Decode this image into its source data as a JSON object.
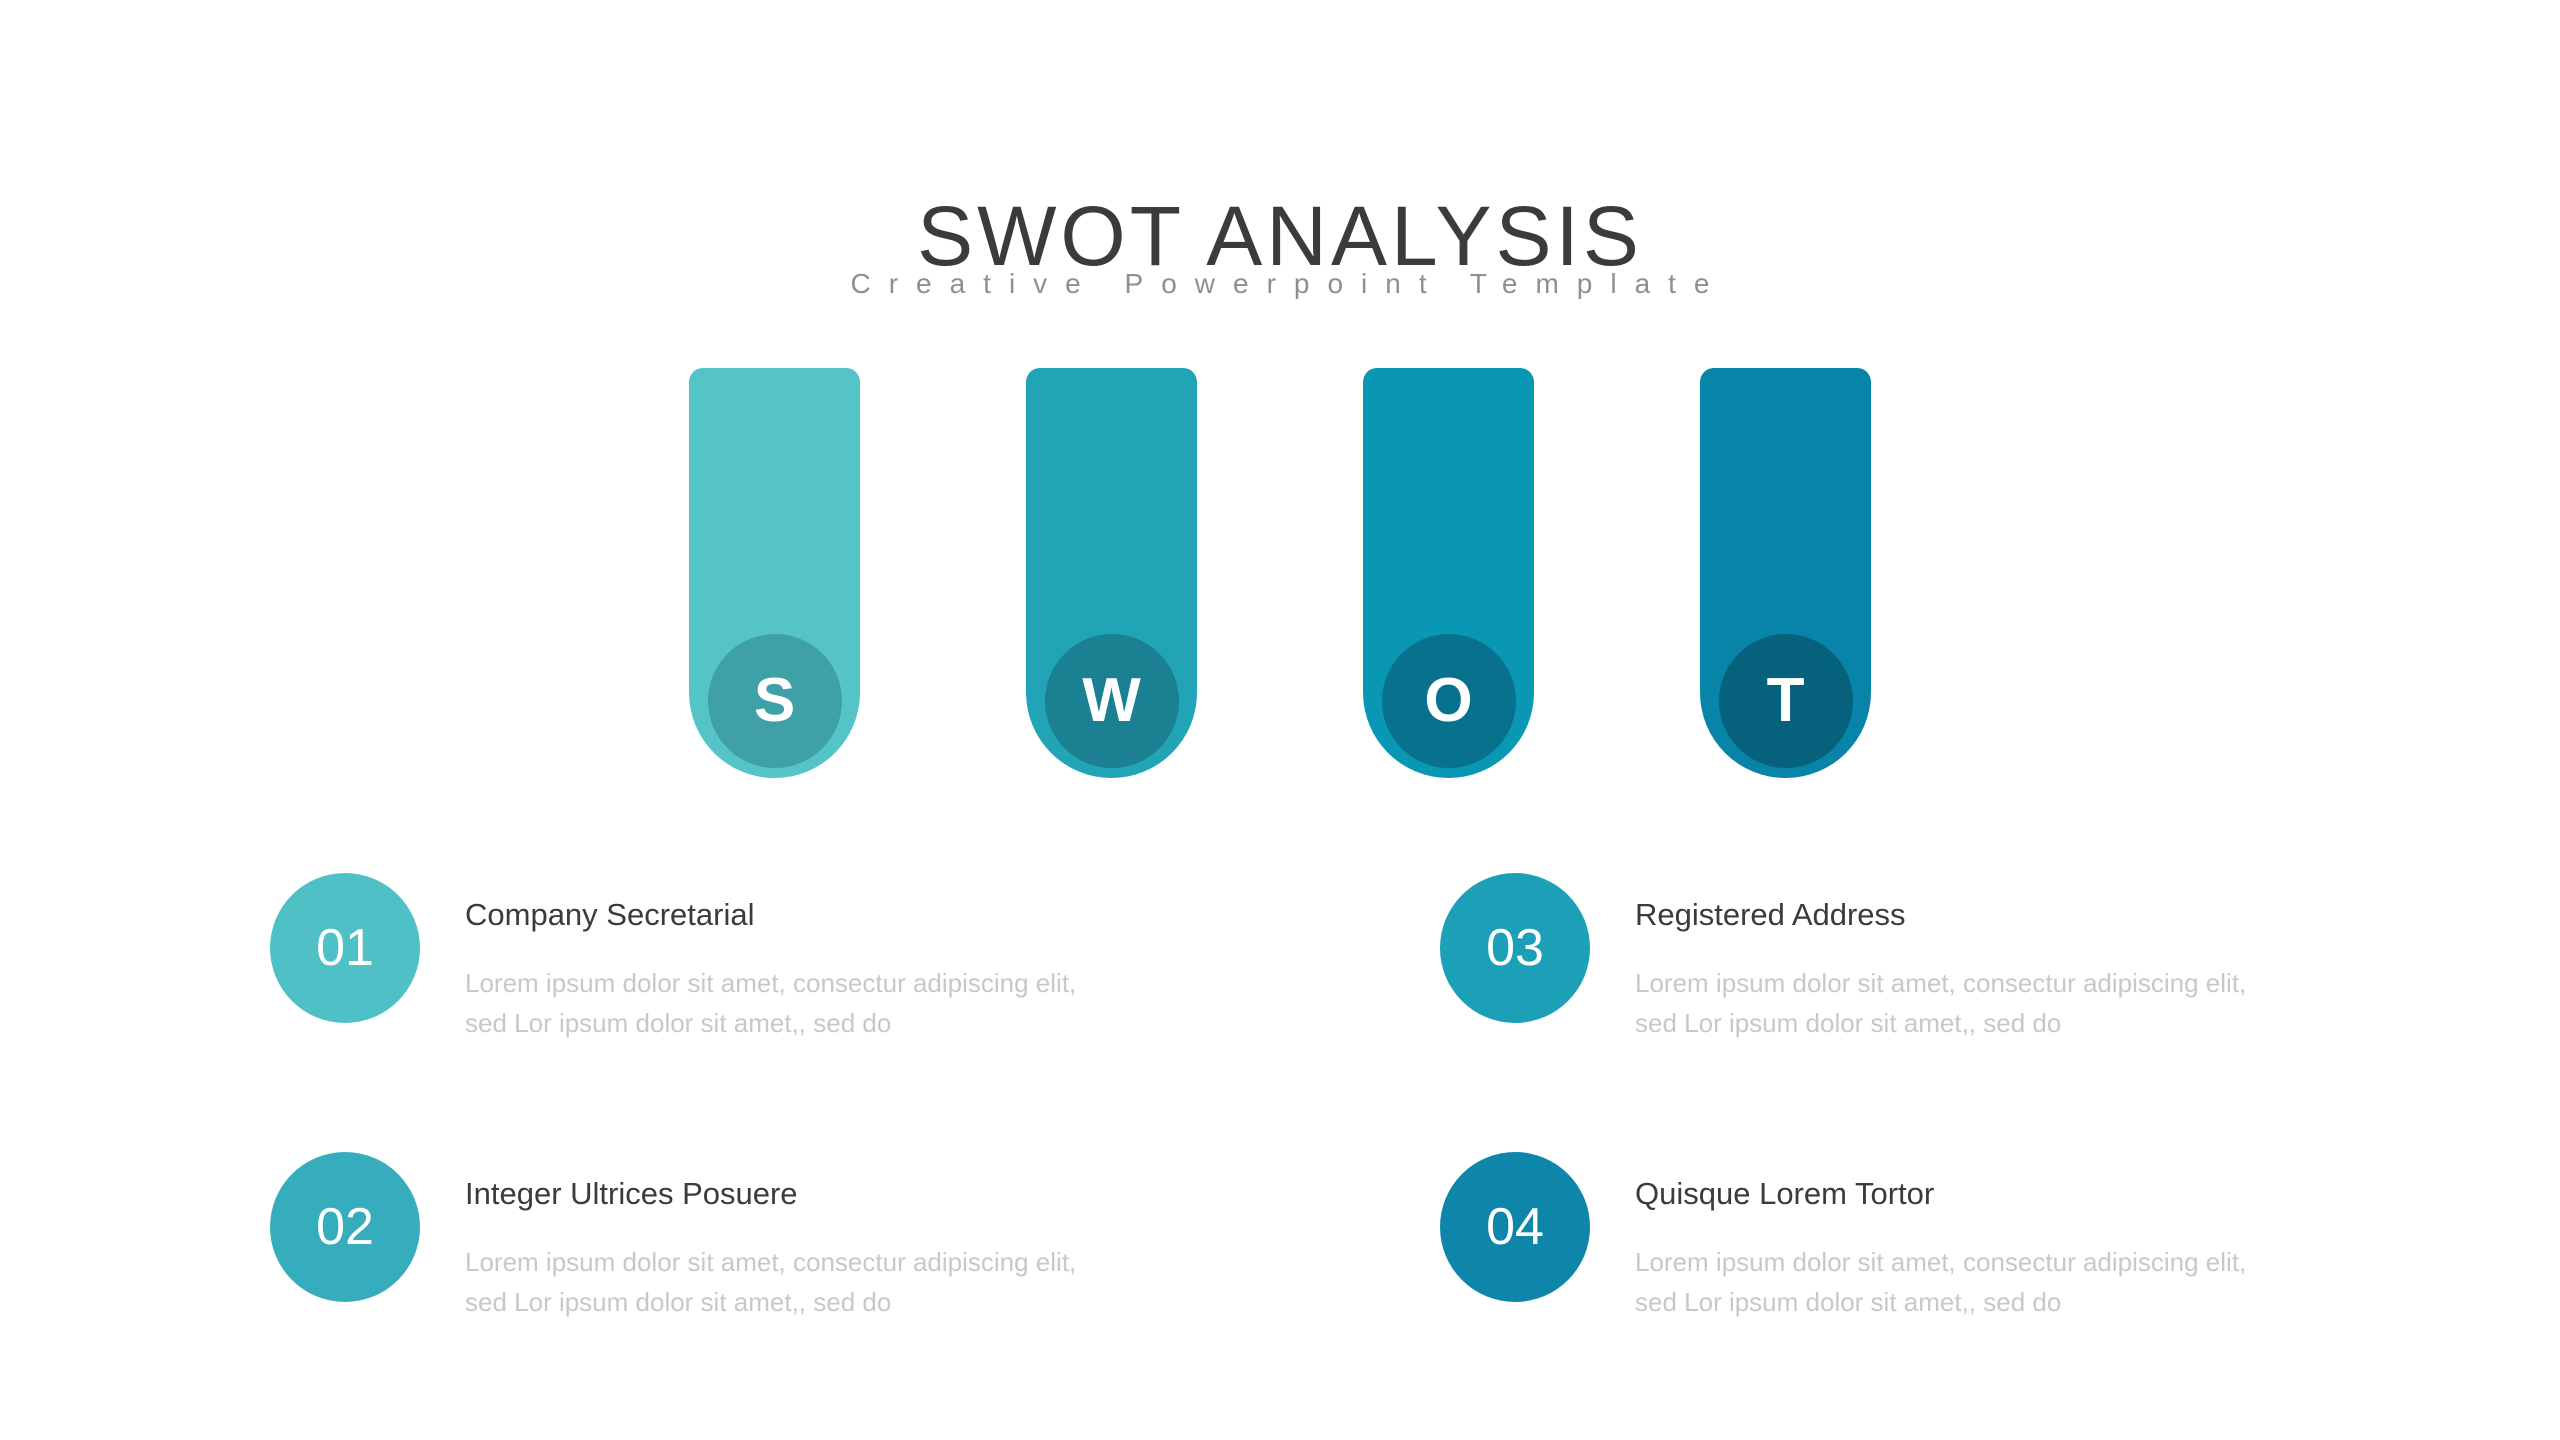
{
  "header": {
    "title": "SWOT ANALYSIS",
    "subtitle": "Creative Powerpoint Template"
  },
  "swot_columns": [
    {
      "letter": "S",
      "bar_color": "#55C4C9",
      "circle_color": "#3FA0A7"
    },
    {
      "letter": "W",
      "bar_color": "#21A4B6",
      "circle_color": "#1A8092"
    },
    {
      "letter": "O",
      "bar_color": "#0997B4",
      "circle_color": "#07718E"
    },
    {
      "letter": "T",
      "bar_color": "#0784A8",
      "circle_color": "#06617C"
    }
  ],
  "items": [
    {
      "number": "01",
      "circle_color": "#4FC0C6",
      "title": "Company Secretarial",
      "body_lines": [
        "Lorem ipsum dolor sit amet, consectur adipiscing elit,",
        "sed Lor ipsum dolor sit amet,, sed do"
      ]
    },
    {
      "number": "02",
      "circle_color": "#36ADBD",
      "title": "Integer Ultrices Posuere",
      "body_lines": [
        "Lorem ipsum dolor sit amet, consectur adipiscing elit,",
        "sed Lor ipsum dolor sit amet,, sed do"
      ]
    },
    {
      "number": "03",
      "circle_color": "#1CA0B8",
      "title": "Registered Address",
      "body_lines": [
        "Lorem ipsum dolor sit amet, consectur adipiscing elit,",
        "sed Lor ipsum dolor sit amet,, sed do"
      ]
    },
    {
      "number": "04",
      "circle_color": "#0D86A9",
      "title": "Quisque Lorem Tortor",
      "body_lines": [
        "Lorem ipsum dolor sit amet, consectur adipiscing elit,",
        "sed Lor ipsum dolor sit amet,, sed do"
      ]
    }
  ],
  "colors": {
    "background": "#FFFFFF",
    "title_text": "#3B3B3B",
    "subtitle_text": "#8F8F8F",
    "item_title_text": "#3B3B3B",
    "item_body_text": "#C8C8C8",
    "letter_text": "#FFFFFF",
    "number_text": "#FFFFFF"
  }
}
